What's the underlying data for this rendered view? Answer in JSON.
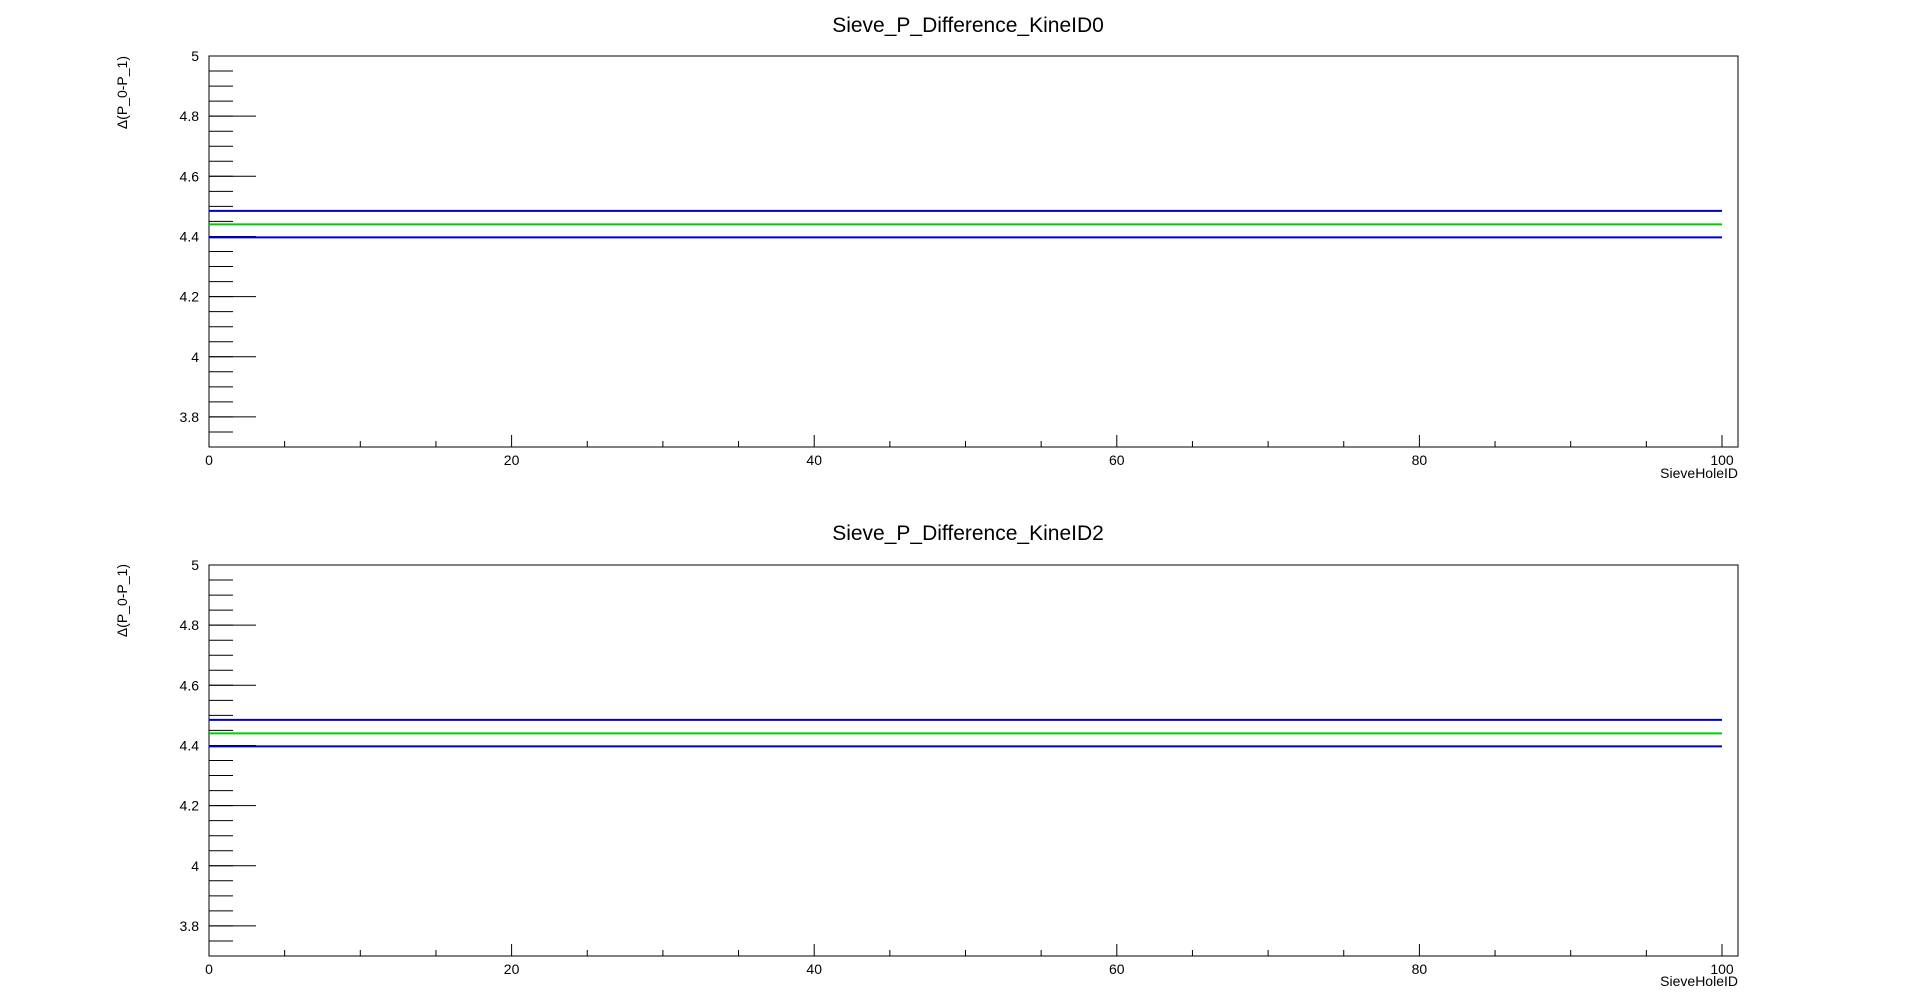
{
  "chart_data": [
    {
      "type": "line",
      "title": "Sieve_P_Difference_KineID0",
      "xlabel": "SieveHoleID",
      "ylabel": "Δ(P_0-P_1)",
      "xlim": [
        0,
        100
      ],
      "ylim": [
        3.7,
        5.0
      ],
      "x_ticks": [
        0,
        20,
        40,
        60,
        80,
        100
      ],
      "x_tick_labels": [
        "0",
        "20",
        "40",
        "60",
        "80",
        "100"
      ],
      "y_ticks": [
        3.8,
        4.0,
        4.2,
        4.4,
        4.6,
        4.8,
        5.0
      ],
      "y_tick_labels": [
        "3.8",
        "4",
        "4.2",
        "4.4",
        "4.6",
        "4.8",
        "5"
      ],
      "grid": false,
      "series": [
        {
          "color": "#0000cc",
          "x": [
            0,
            100
          ],
          "y": [
            4.485,
            4.485
          ]
        },
        {
          "color": "#00cc00",
          "x": [
            0,
            100
          ],
          "y": [
            4.44,
            4.44
          ]
        },
        {
          "color": "#0000cc",
          "x": [
            0,
            100
          ],
          "y": [
            4.397,
            4.397
          ]
        }
      ]
    },
    {
      "type": "line",
      "title": "Sieve_P_Difference_KineID2",
      "xlabel": "SieveHoleID",
      "ylabel": "Δ(P_0-P_1)",
      "xlim": [
        0,
        100
      ],
      "ylim": [
        3.7,
        5.0
      ],
      "x_ticks": [
        0,
        20,
        40,
        60,
        80,
        100
      ],
      "x_tick_labels": [
        "0",
        "20",
        "40",
        "60",
        "80",
        "100"
      ],
      "y_ticks": [
        3.8,
        4.0,
        4.2,
        4.4,
        4.6,
        4.8,
        5.0
      ],
      "y_tick_labels": [
        "3.8",
        "4",
        "4.2",
        "4.4",
        "4.6",
        "4.8",
        "5"
      ],
      "grid": false,
      "series": [
        {
          "color": "#0000cc",
          "x": [
            0,
            100
          ],
          "y": [
            4.485,
            4.485
          ]
        },
        {
          "color": "#00cc00",
          "x": [
            0,
            100
          ],
          "y": [
            4.44,
            4.44
          ]
        },
        {
          "color": "#0000cc",
          "x": [
            0,
            100
          ],
          "y": [
            4.397,
            4.397
          ]
        }
      ]
    }
  ]
}
